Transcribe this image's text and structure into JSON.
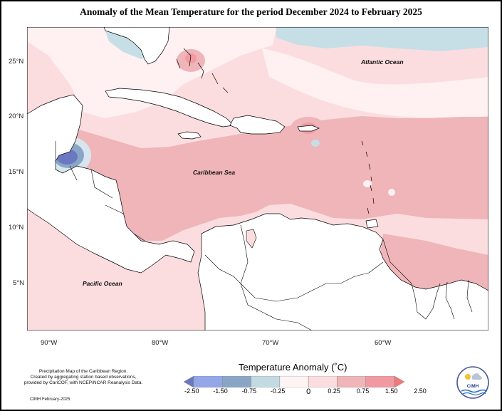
{
  "title": "Anomaly of the Mean Temperature for the period December 2024 to February 2025",
  "lat_labels": [
    "25°N",
    "20°N",
    "15°N",
    "10°N",
    "5°N"
  ],
  "lon_labels": [
    "90°W",
    "80°W",
    "70°W",
    "60°W"
  ],
  "place_labels": {
    "atlantic": "Atlantic Ocean",
    "caribbean": "Caribbean Sea",
    "pacific": "Pacific Ocean"
  },
  "legend": {
    "title": "Temperature Anomaly (˚C)",
    "values": [
      "-2.50",
      "-1.50",
      "-0.75",
      "-0.25",
      "0",
      "0.25",
      "0.75",
      "1.50",
      "2.50"
    ],
    "colors": [
      "#6a78c2",
      "#93a6e8",
      "#8aa6c6",
      "#c2dbe3",
      "#fff4f4",
      "#fbdde0",
      "#efb5b9",
      "#f29aa1",
      "#f37878"
    ]
  },
  "credit": {
    "line1": "Precipitation Map of the Caribbean Region.",
    "line2": "Created by aggregating station based observations,",
    "line3": "provided by CariCOF, with NCEP/NCAR Reanalysis Data.",
    "date": "CIMH February-2025"
  },
  "logo_text": "CIMH",
  "colors": {
    "land": "#ffffff",
    "border": "#000000",
    "light_pink": "#fbdde0",
    "mid_pink": "#efb5b9",
    "warm_pink": "#f29aa1",
    "cool_blue": "#c6dfe6"
  }
}
